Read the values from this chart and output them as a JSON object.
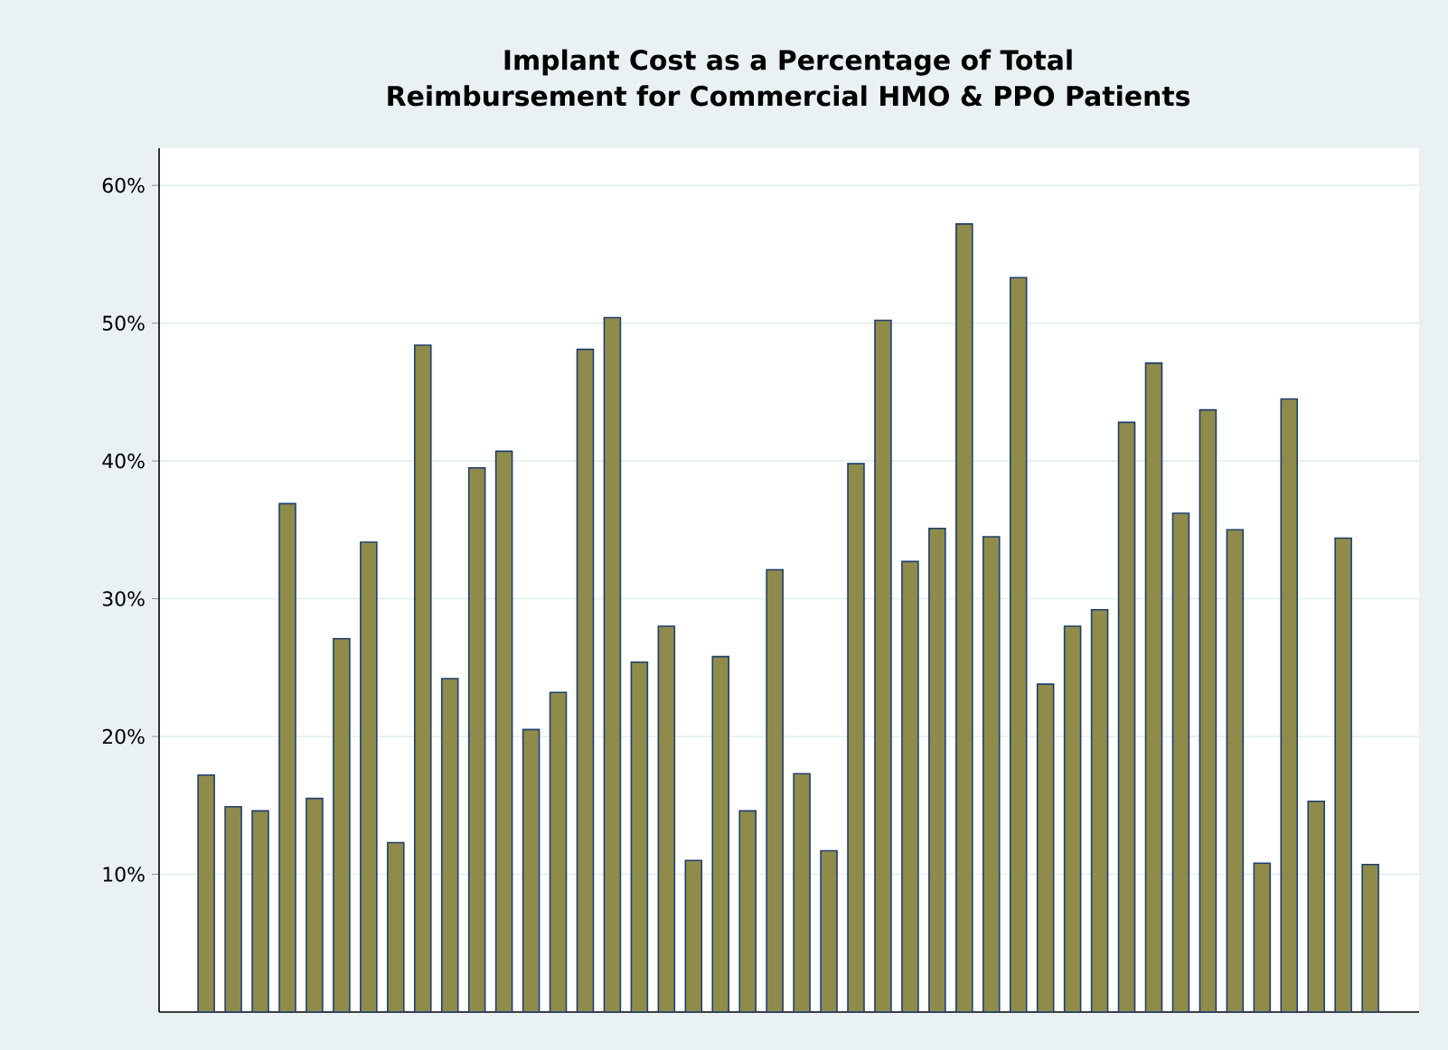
{
  "chart_data": {
    "type": "bar",
    "title": "Implant Cost as a Percentage of Total\nReimbursement for Commercial HMO & PPO Patients",
    "categories": [
      null,
      null,
      null,
      null,
      null,
      null,
      null,
      null,
      null,
      null,
      null,
      null,
      null,
      null,
      null,
      null,
      null,
      null,
      null,
      null,
      null,
      null,
      null,
      null,
      null,
      null,
      null,
      null,
      null,
      null,
      null,
      null,
      null,
      null,
      null,
      null,
      null,
      null,
      null,
      null,
      null,
      null,
      null,
      null
    ],
    "values": [
      17.2,
      14.9,
      14.6,
      36.9,
      15.5,
      27.1,
      34.1,
      12.3,
      48.4,
      24.2,
      39.5,
      40.7,
      20.5,
      23.2,
      48.1,
      50.4,
      25.4,
      28.0,
      11.0,
      25.8,
      14.6,
      32.1,
      17.3,
      11.7,
      39.8,
      50.2,
      32.7,
      35.1,
      57.2,
      34.5,
      53.3,
      23.8,
      28.0,
      29.2,
      42.8,
      47.1,
      36.2,
      43.7,
      35.0,
      10.8,
      44.5,
      15.3,
      34.4,
      10.7
    ],
    "color": "#8f8b4b",
    "ylim": [
      0,
      62.7
    ],
    "yticks": [
      {
        "value": 10,
        "label": "10%"
      },
      {
        "value": 20,
        "label": "20%"
      },
      {
        "value": 30,
        "label": "30%"
      },
      {
        "value": 40,
        "label": "40%"
      },
      {
        "value": 50,
        "label": "50%"
      },
      {
        "value": 60,
        "label": "60%"
      }
    ],
    "grid": "y"
  }
}
